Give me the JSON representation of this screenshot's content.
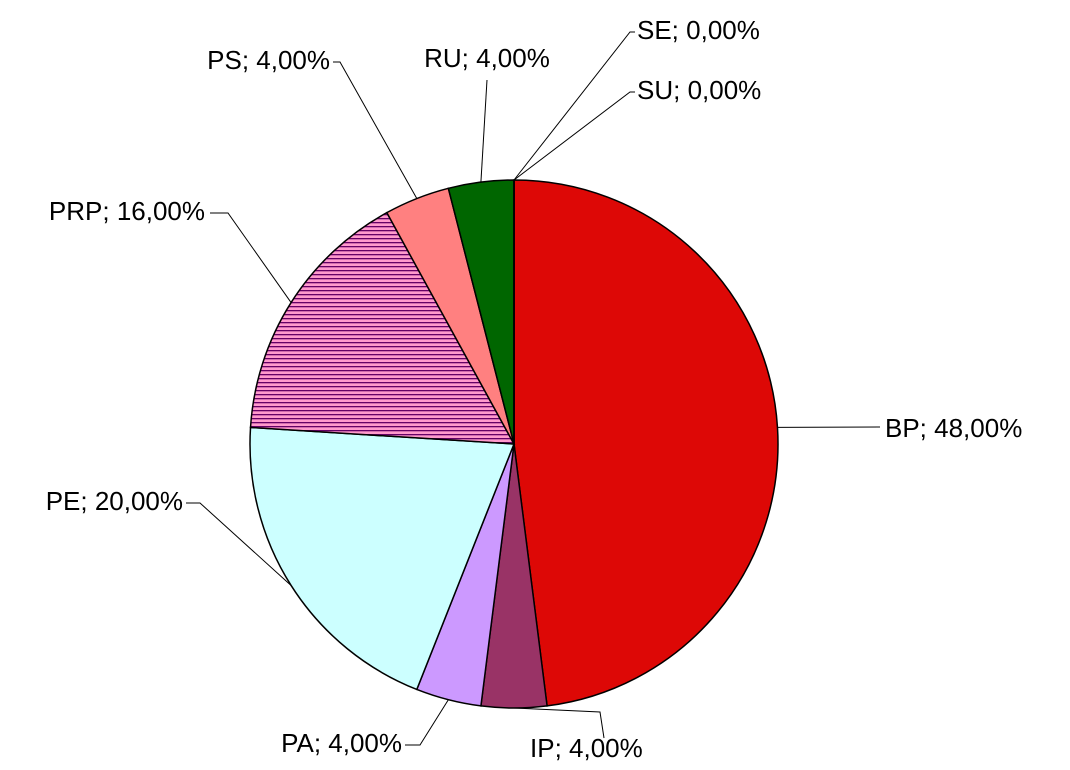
{
  "chart_data": {
    "type": "pie",
    "categories": [
      "BP",
      "IP",
      "PA",
      "PE",
      "PRP",
      "PS",
      "RU",
      "SE",
      "SU"
    ],
    "values": [
      48,
      4,
      4,
      20,
      16,
      4,
      4,
      0,
      0
    ],
    "value_labels": [
      "BP; 48,00%",
      "IP; 4,00%",
      "PA; 4,00%",
      "PE; 20,00%",
      "PRP; 16,00%",
      "PS; 4,00%",
      "RU; 4,00%",
      "SE; 0,00%",
      "SU; 0,00%"
    ],
    "colors": [
      "#dd0806",
      "#993366",
      "#cc99ff",
      "#ccffff",
      "url(#stripes)",
      "#ff8080",
      "#006600",
      "#3366ff",
      "#ffcc00"
    ]
  }
}
